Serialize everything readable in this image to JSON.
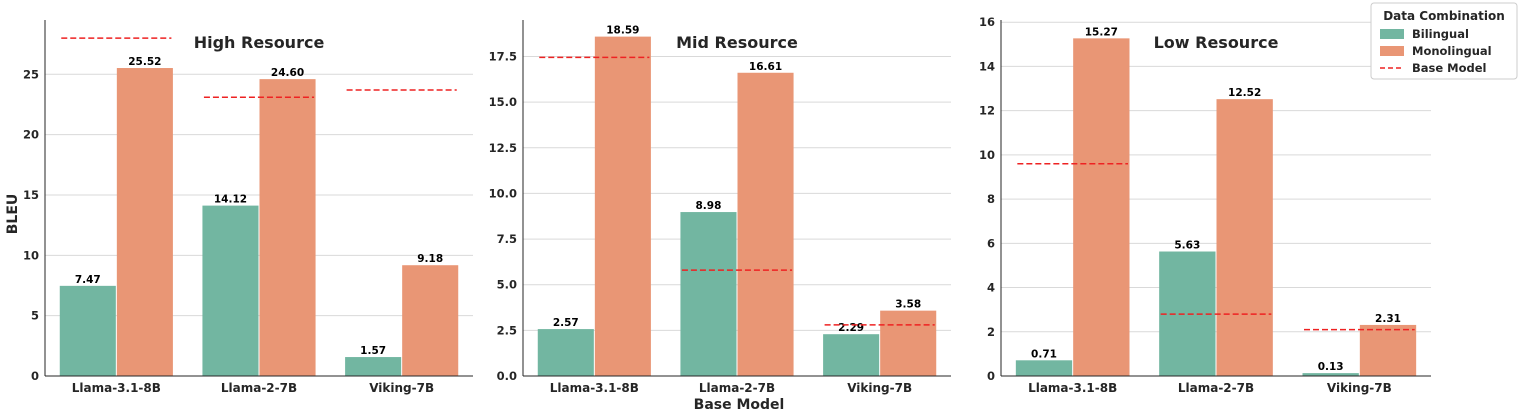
{
  "figure": {
    "ylabel": "BLEU",
    "xlabel": "Base Model"
  },
  "colors": {
    "bilingual": "#72b6a1",
    "monolingual": "#e99675",
    "base": "#ee2222"
  },
  "legend": {
    "title": "Data Combination",
    "items": [
      {
        "label": "Bilingual",
        "kind": "patch",
        "series": "bilingual"
      },
      {
        "label": "Monolingual",
        "kind": "patch",
        "series": "monolingual"
      },
      {
        "label": "Base Model",
        "kind": "dashed",
        "series": "base"
      }
    ]
  },
  "chart_data": [
    {
      "type": "bar",
      "title": "High Resource",
      "categories": [
        "Llama-3.1-8B",
        "Llama-2-7B",
        "Viking-7B"
      ],
      "ylim": [
        0,
        29.5
      ],
      "yticks": [
        0,
        5,
        10,
        15,
        20,
        25
      ],
      "ytick_labels": [
        "0",
        "5",
        "10",
        "15",
        "20",
        "25"
      ],
      "series": [
        {
          "name": "Bilingual",
          "values": [
            7.47,
            14.12,
            1.57
          ],
          "labels": [
            "7.47",
            "14.12",
            "1.57"
          ]
        },
        {
          "name": "Monolingual",
          "values": [
            25.52,
            24.6,
            9.18
          ],
          "labels": [
            "25.52",
            "24.60",
            "9.18"
          ]
        }
      ],
      "base_model": [
        28.0,
        23.1,
        23.7
      ],
      "grid": true
    },
    {
      "type": "bar",
      "title": "Mid Resource",
      "categories": [
        "Llama-3.1-8B",
        "Llama-2-7B",
        "Viking-7B"
      ],
      "ylim": [
        0,
        19.5
      ],
      "yticks": [
        0,
        2.5,
        5,
        7.5,
        10,
        12.5,
        15,
        17.5
      ],
      "ytick_labels": [
        "0.0",
        "2.5",
        "5.0",
        "7.5",
        "10.0",
        "12.5",
        "15.0",
        "17.5"
      ],
      "series": [
        {
          "name": "Bilingual",
          "values": [
            2.57,
            8.98,
            2.29
          ],
          "labels": [
            "2.57",
            "8.98",
            "2.29"
          ]
        },
        {
          "name": "Monolingual",
          "values": [
            18.59,
            16.61,
            3.58
          ],
          "labels": [
            "18.59",
            "16.61",
            "3.58"
          ]
        }
      ],
      "base_model": [
        17.45,
        5.8,
        2.8
      ],
      "grid": true
    },
    {
      "type": "bar",
      "title": "Low Resource",
      "categories": [
        "Llama-3.1-8B",
        "Llama-2-7B",
        "Viking-7B"
      ],
      "ylim": [
        0,
        16.1
      ],
      "yticks": [
        0,
        2,
        4,
        6,
        8,
        10,
        12,
        14,
        16
      ],
      "ytick_labels": [
        "0",
        "2",
        "4",
        "6",
        "8",
        "10",
        "12",
        "14",
        "16"
      ],
      "series": [
        {
          "name": "Bilingual",
          "values": [
            0.71,
            5.63,
            0.13
          ],
          "labels": [
            "0.71",
            "5.63",
            "0.13"
          ]
        },
        {
          "name": "Monolingual",
          "values": [
            15.27,
            12.52,
            2.31
          ],
          "labels": [
            "15.27",
            "12.52",
            "2.31"
          ]
        }
      ],
      "base_model": [
        9.6,
        2.8,
        2.1
      ],
      "grid": true
    }
  ]
}
